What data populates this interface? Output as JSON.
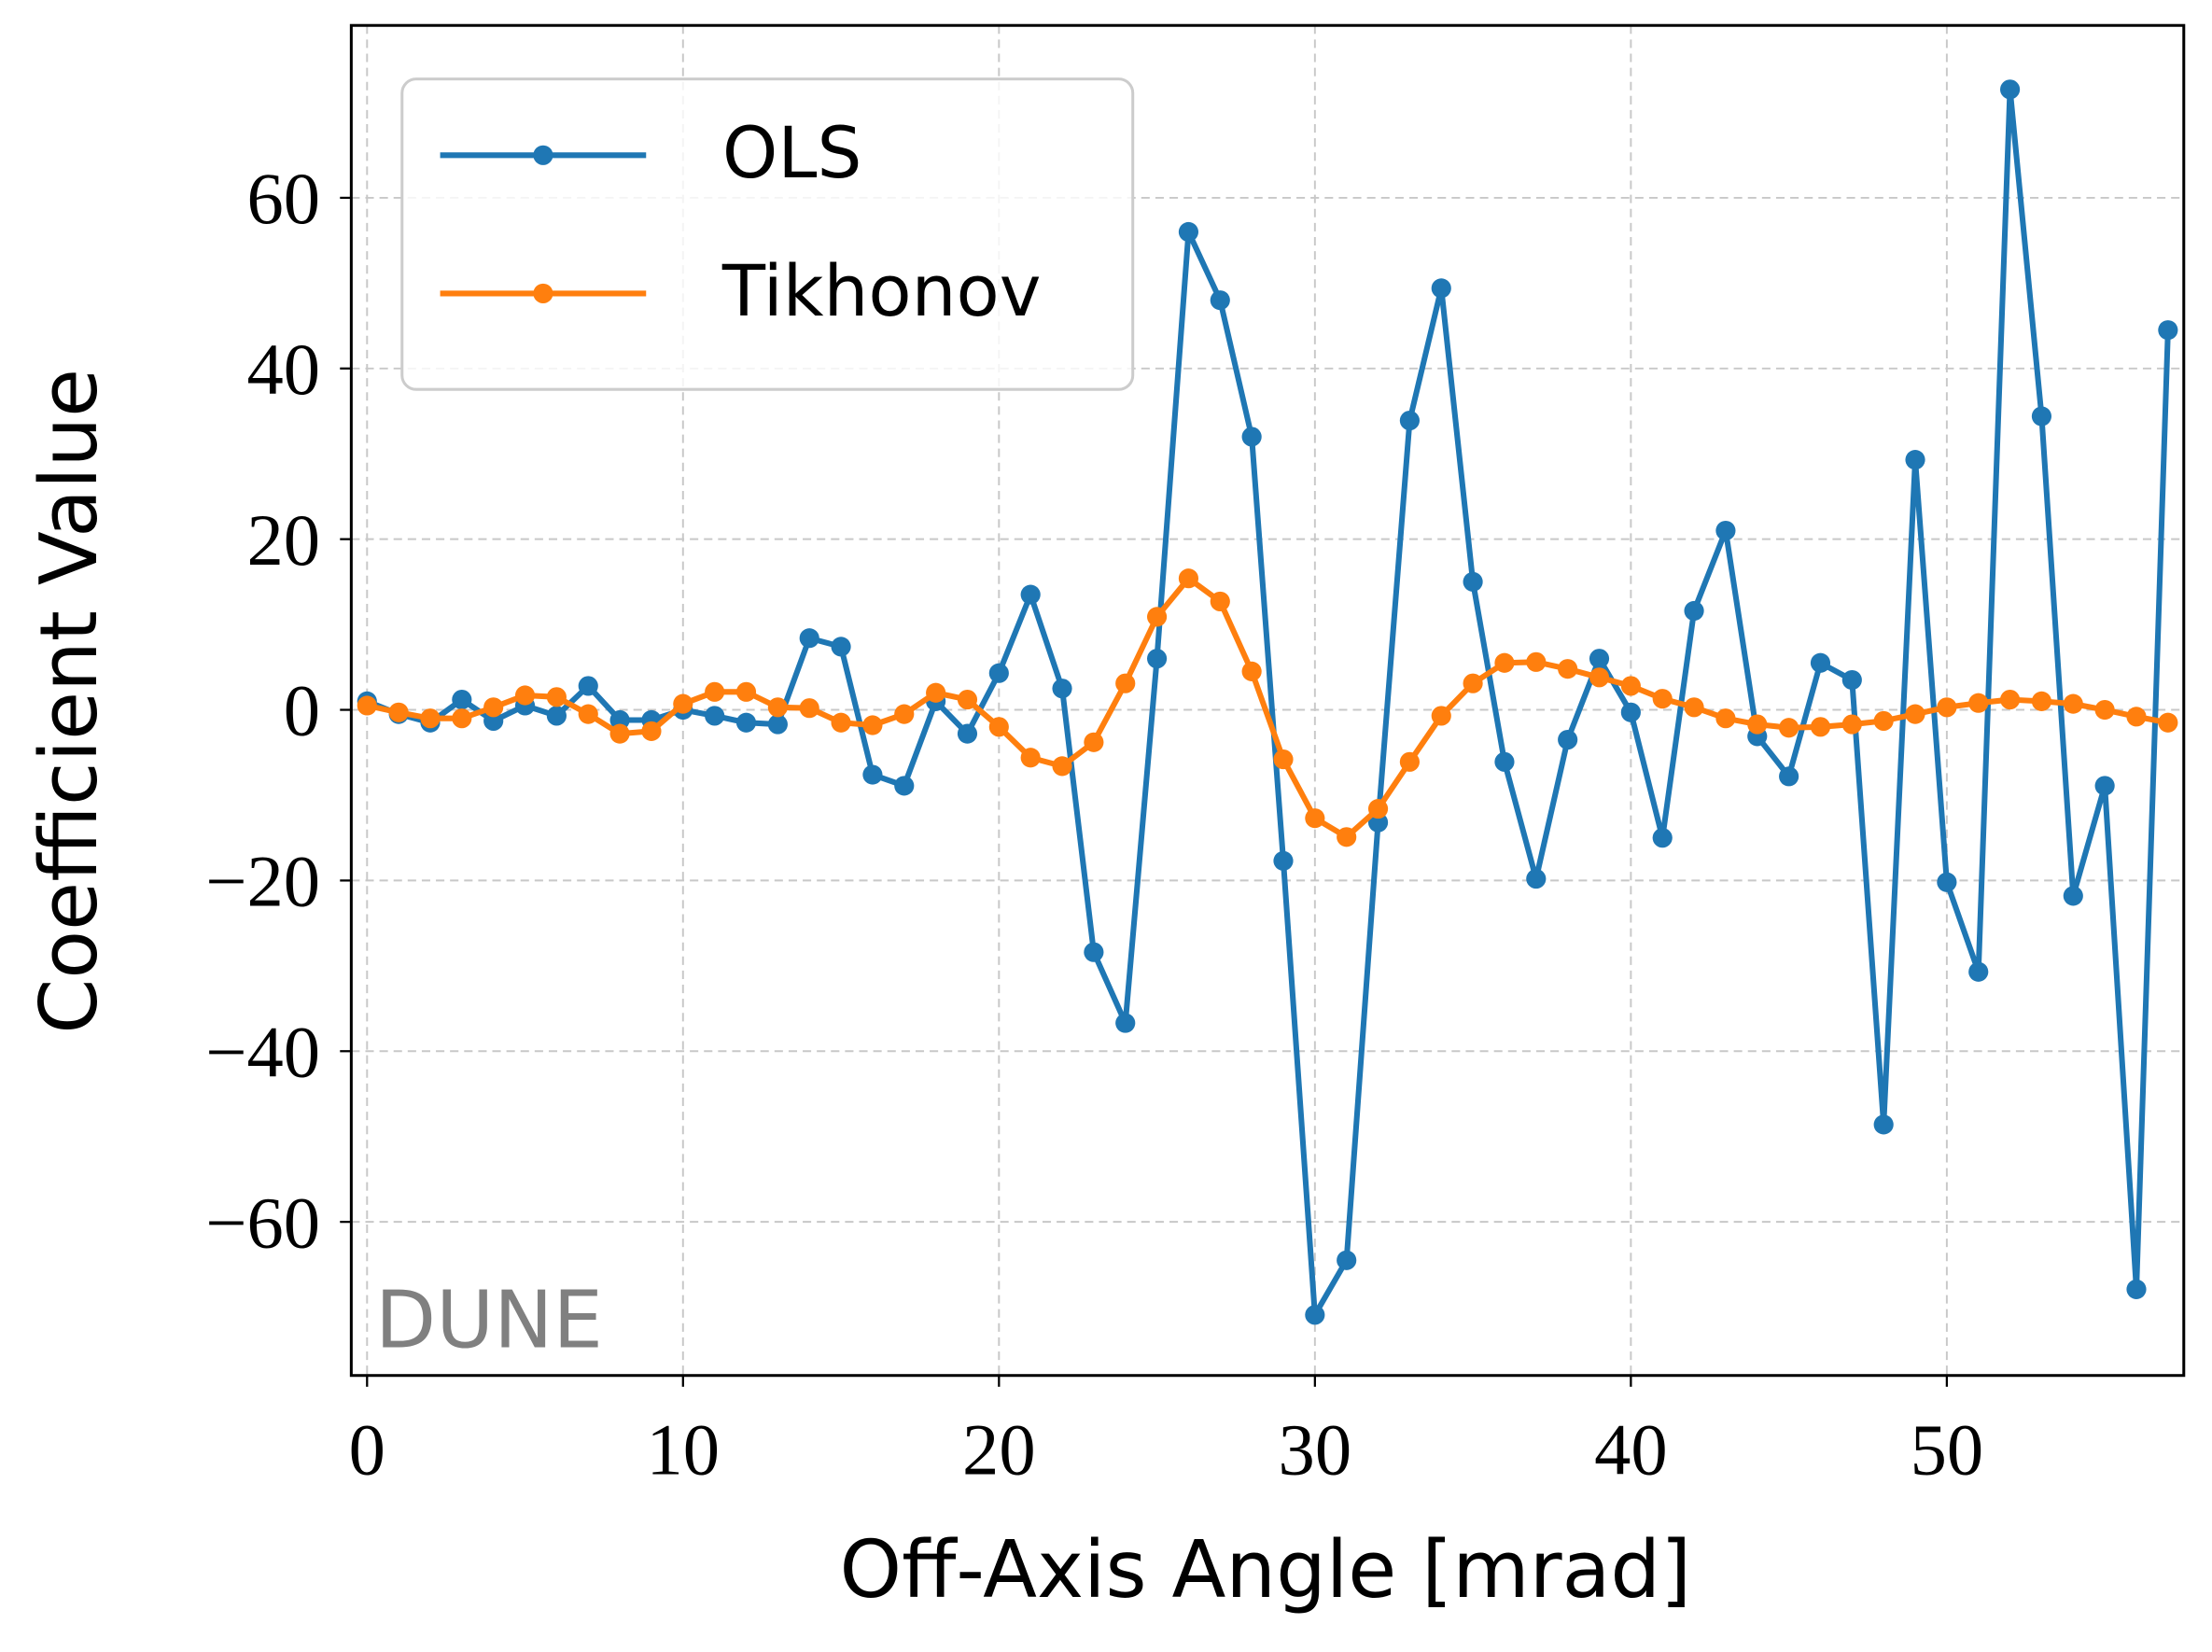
{
  "chart_data": {
    "type": "line",
    "xlabel": "Off-Axis Angle [mrad]",
    "ylabel": "Coefficient Value",
    "annotation": "DUNE",
    "x": [
      0,
      1,
      2,
      3,
      4,
      5,
      6,
      7,
      8,
      9,
      10,
      11,
      12,
      13,
      14,
      15,
      16,
      17,
      18,
      19,
      20,
      21,
      22,
      23,
      24,
      25,
      26,
      27,
      28,
      29,
      30,
      31,
      32,
      33,
      34,
      35,
      36,
      37,
      38,
      39,
      40,
      41,
      42,
      43,
      44,
      45,
      46,
      47,
      48,
      49,
      50,
      51,
      52,
      53,
      54,
      55,
      56,
      57
    ],
    "series": [
      {
        "name": "OLS",
        "color": "#1f77b4",
        "values": [
          1,
          -0.5,
          -1.5,
          1.2,
          -1.3,
          0.5,
          -0.7,
          2.8,
          -1.2,
          -1.2,
          0,
          -0.7,
          -1.5,
          -1.7,
          8.4,
          7.4,
          -7.6,
          -8.9,
          1,
          -2.8,
          4.3,
          13.5,
          2.5,
          -28.4,
          -36.7,
          6,
          56,
          48,
          32,
          -17.7,
          -70.9,
          -64.5,
          -13.2,
          33.9,
          49.4,
          15,
          -6.1,
          -19.8,
          -3.5,
          6,
          -0.3,
          -15,
          11.6,
          21,
          -3.1,
          -7.8,
          5.5,
          3.5,
          -48.6,
          29.3,
          -20.2,
          -30.7,
          72.7,
          34.4,
          -21.8,
          -8.9,
          -67.9,
          44.5
        ]
      },
      {
        "name": "Tikhonov",
        "color": "#ff7f0e",
        "values": [
          0.5,
          -0.3,
          -1,
          -1,
          0.3,
          1.7,
          1.5,
          -0.5,
          -2.8,
          -2.5,
          0.7,
          2.1,
          2.1,
          0.3,
          0.2,
          -1.5,
          -1.8,
          -0.5,
          2,
          1.2,
          -2,
          -5.6,
          -6.6,
          -3.8,
          3.1,
          10.9,
          15.4,
          12.7,
          4.5,
          -5.8,
          -12.7,
          -14.9,
          -11.6,
          -6.1,
          -0.7,
          3.1,
          5.5,
          5.6,
          4.8,
          3.8,
          2.8,
          1.3,
          0.3,
          -1,
          -1.7,
          -2.1,
          -2,
          -1.7,
          -1.3,
          -0.5,
          0.3,
          0.8,
          1.2,
          1,
          0.7,
          0,
          -0.8,
          -1.5
        ]
      }
    ],
    "xlim": [
      -0.5,
      57.5
    ],
    "ylim": [
      -78,
      80.2
    ],
    "xticks": [
      0,
      10,
      20,
      30,
      40,
      50
    ],
    "yticks": [
      {
        "value": -60,
        "label": "−60"
      },
      {
        "value": -40,
        "label": "−40"
      },
      {
        "value": -20,
        "label": "−20"
      },
      0,
      20,
      40,
      60
    ],
    "grid": true,
    "legend": "upper left"
  }
}
